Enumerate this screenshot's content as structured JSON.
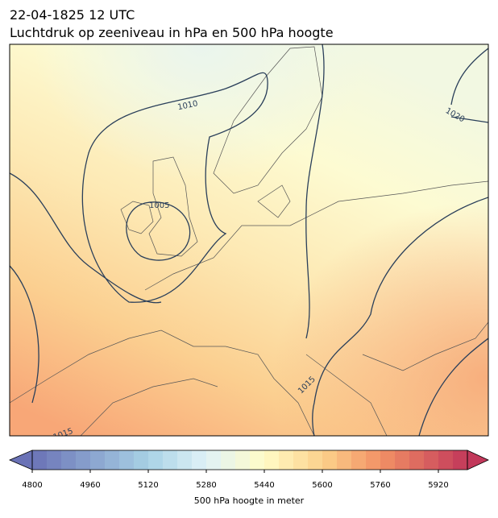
{
  "header": {
    "title": "22-04-1825 12 UTC",
    "subtitle": "Luchtdruk op zeeniveau in hPa en 500 hPa hoogte"
  },
  "map": {
    "contour_labels": [
      "1010",
      "1020",
      "1005",
      "1015",
      "1015"
    ]
  },
  "colorbar": {
    "label": "500 hPa hoogte in meter",
    "lim": [
      4800,
      6000
    ],
    "ticks": [
      4800,
      4960,
      5120,
      5280,
      5440,
      5600,
      5760,
      5920
    ]
  }
}
